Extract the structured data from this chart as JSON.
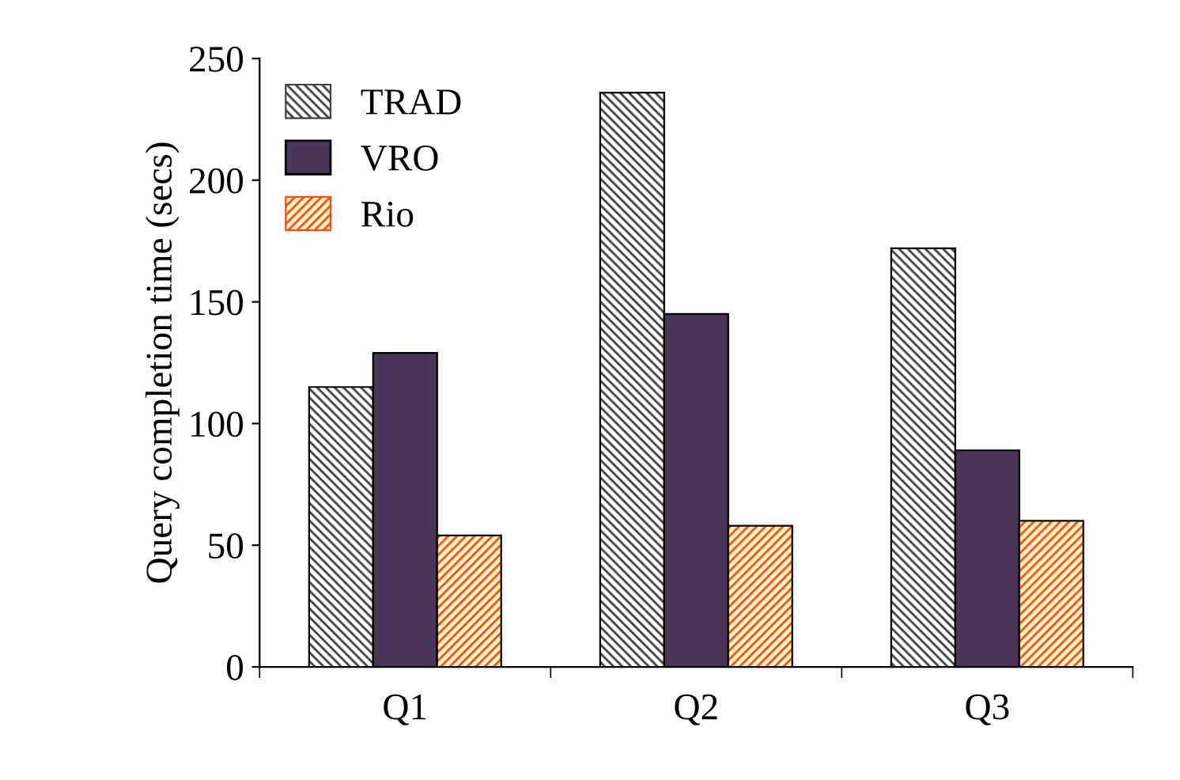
{
  "chart_data": {
    "type": "bar",
    "ylabel": "Query completion time (secs)",
    "categories": [
      "Q1",
      "Q2",
      "Q3"
    ],
    "series": [
      {
        "name": "TRAD",
        "color": "#404040",
        "values": [
          115,
          236,
          172
        ]
      },
      {
        "name": "VRO",
        "color": "#4a3558",
        "values": [
          129,
          145,
          89
        ]
      },
      {
        "name": "Rio",
        "color": "#e8501e",
        "values": [
          54,
          58,
          60
        ]
      }
    ],
    "ylim": [
      0,
      250
    ],
    "yticks": [
      0,
      50,
      100,
      150,
      200,
      250
    ],
    "grid": false,
    "legend": "top left"
  }
}
